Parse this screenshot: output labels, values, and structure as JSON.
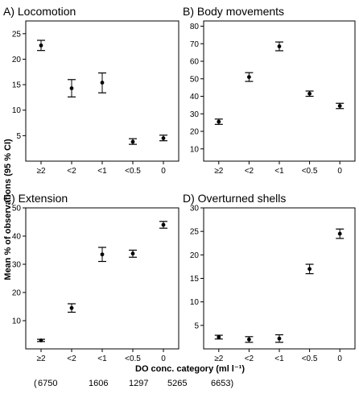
{
  "figure": {
    "ylabel": "Mean % of observations (95 % CI)",
    "xlabel": "DO conc. category (ml l⁻¹)",
    "counts_prefix": "(",
    "counts": [
      "6750",
      "1606",
      "1297",
      "5265",
      "6653)"
    ]
  },
  "chart_data": [
    {
      "type": "scatter",
      "title": "A) Locomotion",
      "categories": [
        "≥2",
        "<2",
        "<1",
        "<0.5",
        "0"
      ],
      "values": [
        22.7,
        14.3,
        15.4,
        3.8,
        4.5
      ],
      "ci_low": [
        21.7,
        12.6,
        13.4,
        3.3,
        4.0
      ],
      "ci_high": [
        23.7,
        16.0,
        17.3,
        4.4,
        5.1
      ],
      "yticks": [
        5,
        10,
        15,
        20,
        25
      ],
      "ylim": [
        0,
        27.5
      ]
    },
    {
      "type": "scatter",
      "title": "B) Body movements",
      "categories": [
        "≥2",
        "<2",
        "<1",
        "<0.5",
        "0"
      ],
      "values": [
        25.5,
        51.0,
        68.5,
        41.5,
        34.5
      ],
      "ci_low": [
        24.0,
        48.5,
        66.0,
        40.0,
        33.0
      ],
      "ci_high": [
        27.0,
        53.5,
        71.0,
        43.0,
        36.0
      ],
      "yticks": [
        10,
        20,
        30,
        40,
        50,
        60,
        70,
        80
      ],
      "ylim": [
        3,
        83
      ]
    },
    {
      "type": "scatter",
      "title": "C) Extension",
      "categories": [
        "≥2",
        "<2",
        "<1",
        "<0.5",
        "0"
      ],
      "values": [
        3.0,
        14.5,
        33.5,
        33.8,
        44.0
      ],
      "ci_low": [
        2.6,
        13.0,
        31.0,
        32.5,
        42.8
      ],
      "ci_high": [
        3.4,
        16.0,
        36.0,
        35.0,
        45.2
      ],
      "yticks": [
        10,
        20,
        30,
        40,
        50
      ],
      "ylim": [
        0,
        50
      ]
    },
    {
      "type": "scatter",
      "title": "D) Overturned shells",
      "categories": [
        "≥2",
        "<2",
        "<1",
        "<0.5",
        "0"
      ],
      "values": [
        2.5,
        2.0,
        2.2,
        17.0,
        24.5
      ],
      "ci_low": [
        2.1,
        1.4,
        1.4,
        16.0,
        23.5
      ],
      "ci_high": [
        2.9,
        2.6,
        3.0,
        18.0,
        25.5
      ],
      "yticks": [
        5,
        10,
        15,
        20,
        25,
        30
      ],
      "ylim": [
        0,
        30
      ]
    }
  ]
}
